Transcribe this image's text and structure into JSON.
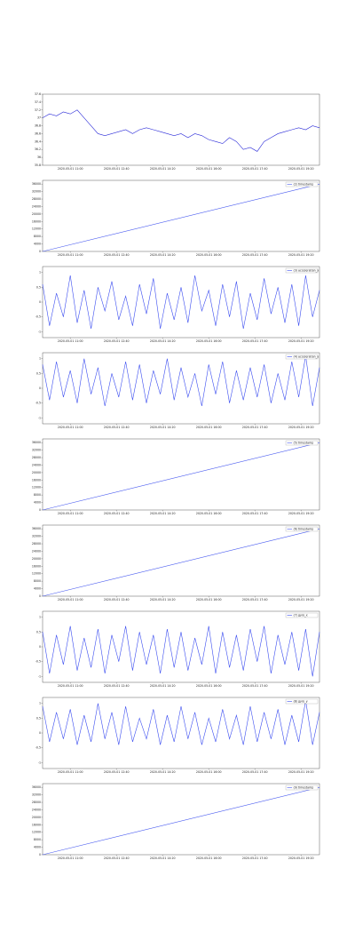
{
  "chart_data": [
    {
      "type": "line",
      "x": [
        0,
        15,
        30,
        45,
        60,
        75,
        90,
        105,
        120,
        135,
        150,
        165,
        180,
        195,
        210,
        225,
        240,
        255,
        270,
        285,
        300,
        315,
        330,
        345,
        360,
        375,
        390,
        405,
        420,
        435,
        450,
        465,
        480,
        495,
        510,
        525,
        540,
        555,
        570,
        585,
        600
      ],
      "series": [
        {
          "color": "#2a2ad8",
          "values": [
            37.0,
            37.1,
            37.05,
            37.15,
            37.1,
            37.2,
            37.0,
            36.8,
            36.6,
            36.55,
            36.6,
            36.65,
            36.7,
            36.6,
            36.7,
            36.75,
            36.7,
            36.65,
            36.6,
            36.55,
            36.6,
            36.5,
            36.6,
            36.55,
            36.45,
            36.4,
            36.35,
            36.5,
            36.4,
            36.2,
            36.25,
            36.15,
            36.4,
            36.5,
            36.6,
            36.65,
            36.7,
            36.75,
            36.7,
            36.8,
            36.75
          ]
        }
      ],
      "xlim": [
        0,
        600
      ],
      "ylim": [
        35.8,
        37.6
      ],
      "yticks": [
        35.8,
        36.0,
        36.2,
        36.4,
        36.6,
        36.8,
        37.0,
        37.2,
        37.4,
        37.6
      ],
      "xticks": [
        {
          "value": 60,
          "label": "2020-05-01 11:00"
        },
        {
          "value": 160,
          "label": "2020-05-01 12:40"
        },
        {
          "value": 260,
          "label": "2020-05-01 14:20"
        },
        {
          "value": 360,
          "label": "2020-05-01 16:00"
        },
        {
          "value": 460,
          "label": "2020-05-01 17:40"
        },
        {
          "value": 560,
          "label": "2020-05-01 19:20"
        }
      ]
    },
    {
      "type": "line",
      "x": [
        0,
        600
      ],
      "series": [
        {
          "name": "(2) timestamp",
          "color": "#4a5cf0",
          "values": [
            0,
            36000
          ]
        }
      ],
      "xlim": [
        0,
        600
      ],
      "ylim": [
        0,
        38000
      ],
      "yticks": [
        0,
        4000,
        8000,
        12000,
        16000,
        20000,
        24000,
        28000,
        32000,
        36000
      ],
      "legend": "upper right",
      "xticks": [
        {
          "value": 60,
          "label": "2020-05-01 11:00"
        },
        {
          "value": 160,
          "label": "2020-05-01 12:40"
        },
        {
          "value": 260,
          "label": "2020-05-01 14:20"
        },
        {
          "value": 360,
          "label": "2020-05-01 16:00"
        },
        {
          "value": 460,
          "label": "2020-05-01 17:40"
        },
        {
          "value": 560,
          "label": "2020-05-01 19:20"
        }
      ]
    },
    {
      "type": "line",
      "x": [
        0,
        15,
        30,
        45,
        60,
        75,
        90,
        105,
        120,
        135,
        150,
        165,
        180,
        195,
        210,
        225,
        240,
        255,
        270,
        285,
        300,
        315,
        330,
        345,
        360,
        375,
        390,
        405,
        420,
        435,
        450,
        465,
        480,
        495,
        510,
        525,
        540,
        555,
        570,
        585,
        600
      ],
      "series": [
        {
          "name": "(3) acceleration_x",
          "color": "#3a4cf0",
          "values": [
            0.6,
            -0.8,
            0.3,
            -0.5,
            0.9,
            -0.7,
            0.4,
            -0.9,
            0.5,
            -0.3,
            0.7,
            -0.6,
            0.2,
            -0.8,
            0.6,
            -0.4,
            0.8,
            -0.9,
            0.3,
            -0.6,
            0.5,
            -0.7,
            0.9,
            -0.3,
            0.4,
            -0.8,
            0.6,
            -0.5,
            0.7,
            -0.9,
            0.3,
            -0.6,
            0.8,
            -0.4,
            0.5,
            -0.7,
            0.6,
            -0.8,
            0.9,
            -0.5,
            0.4
          ]
        }
      ],
      "xlim": [
        0,
        600
      ],
      "ylim": [
        -1.2,
        1.2
      ],
      "yticks": [
        -1,
        -0.5,
        0,
        0.5,
        1
      ],
      "legend": "upper right",
      "xticks": [
        {
          "value": 60,
          "label": "2020-05-01 11:00"
        },
        {
          "value": 160,
          "label": "2020-05-01 12:40"
        },
        {
          "value": 260,
          "label": "2020-05-01 14:20"
        },
        {
          "value": 360,
          "label": "2020-05-01 16:00"
        },
        {
          "value": 460,
          "label": "2020-05-01 17:40"
        },
        {
          "value": 560,
          "label": "2020-05-01 19:20"
        }
      ]
    },
    {
      "type": "line",
      "x": [
        0,
        15,
        30,
        45,
        60,
        75,
        90,
        105,
        120,
        135,
        150,
        165,
        180,
        195,
        210,
        225,
        240,
        255,
        270,
        285,
        300,
        315,
        330,
        345,
        360,
        375,
        390,
        405,
        420,
        435,
        450,
        465,
        480,
        495,
        510,
        525,
        540,
        555,
        570,
        585,
        600
      ],
      "series": [
        {
          "name": "(4) acceleration_y",
          "color": "#3a4cf0",
          "values": [
            0.8,
            -0.4,
            0.9,
            -0.3,
            0.6,
            -0.5,
            1.0,
            -0.2,
            0.7,
            -0.6,
            0.5,
            -0.3,
            0.9,
            -0.4,
            0.8,
            -0.5,
            0.6,
            -0.2,
            1.0,
            -0.4,
            0.7,
            -0.3,
            0.5,
            -0.6,
            0.8,
            -0.2,
            0.9,
            -0.5,
            0.6,
            -0.4,
            0.7,
            -0.3,
            0.8,
            -0.5,
            0.5,
            -0.4,
            0.9,
            -0.3,
            1.1,
            -0.6,
            0.7
          ]
        }
      ],
      "xlim": [
        0,
        600
      ],
      "ylim": [
        -1.2,
        1.2
      ],
      "yticks": [
        -1,
        -0.5,
        0,
        0.5,
        1
      ],
      "legend": "upper right",
      "xticks": [
        {
          "value": 60,
          "label": "2020-05-01 11:00"
        },
        {
          "value": 160,
          "label": "2020-05-01 12:40"
        },
        {
          "value": 260,
          "label": "2020-05-01 14:20"
        },
        {
          "value": 360,
          "label": "2020-05-01 16:00"
        },
        {
          "value": 460,
          "label": "2020-05-01 17:40"
        },
        {
          "value": 560,
          "label": "2020-05-01 19:20"
        }
      ]
    },
    {
      "type": "line",
      "x": [
        0,
        600
      ],
      "series": [
        {
          "name": "(5) timestamp",
          "color": "#4a5cf0",
          "values": [
            0,
            36000
          ]
        }
      ],
      "xlim": [
        0,
        600
      ],
      "ylim": [
        0,
        38000
      ],
      "yticks": [
        0,
        4000,
        8000,
        12000,
        16000,
        20000,
        24000,
        28000,
        32000,
        36000
      ],
      "legend": "upper right",
      "xticks": [
        {
          "value": 60,
          "label": "2020-05-01 11:00"
        },
        {
          "value": 160,
          "label": "2020-05-01 12:40"
        },
        {
          "value": 260,
          "label": "2020-05-01 14:20"
        },
        {
          "value": 360,
          "label": "2020-05-01 16:00"
        },
        {
          "value": 460,
          "label": "2020-05-01 17:40"
        },
        {
          "value": 560,
          "label": "2020-05-01 19:20"
        }
      ]
    },
    {
      "type": "line",
      "x": [
        0,
        600
      ],
      "series": [
        {
          "name": "(6) timestamp",
          "color": "#4a5cf0",
          "values": [
            0,
            36000
          ]
        }
      ],
      "xlim": [
        0,
        600
      ],
      "ylim": [
        0,
        38000
      ],
      "yticks": [
        0,
        4000,
        8000,
        12000,
        16000,
        20000,
        24000,
        28000,
        32000,
        36000
      ],
      "legend": "upper right",
      "xticks": [
        {
          "value": 60,
          "label": "2020-05-01 11:00"
        },
        {
          "value": 160,
          "label": "2020-05-01 12:40"
        },
        {
          "value": 260,
          "label": "2020-05-01 14:20"
        },
        {
          "value": 360,
          "label": "2020-05-01 16:00"
        },
        {
          "value": 460,
          "label": "2020-05-01 17:40"
        },
        {
          "value": 560,
          "label": "2020-05-01 19:20"
        }
      ]
    },
    {
      "type": "line",
      "x": [
        0,
        15,
        30,
        45,
        60,
        75,
        90,
        105,
        120,
        135,
        150,
        165,
        180,
        195,
        210,
        225,
        240,
        255,
        270,
        285,
        300,
        315,
        330,
        345,
        360,
        375,
        390,
        405,
        420,
        435,
        450,
        465,
        480,
        495,
        510,
        525,
        540,
        555,
        570,
        585,
        600
      ],
      "series": [
        {
          "name": "(7) gyro_x",
          "color": "#3a4cf0",
          "values": [
            0.5,
            -0.9,
            0.4,
            -0.6,
            0.7,
            -0.8,
            0.3,
            -0.7,
            0.6,
            -0.9,
            0.4,
            -0.5,
            0.7,
            -0.8,
            0.5,
            -0.6,
            0.4,
            -0.9,
            0.6,
            -0.7,
            0.5,
            -0.8,
            0.3,
            -0.6,
            0.7,
            -0.9,
            0.5,
            -0.7,
            0.4,
            -0.8,
            0.6,
            -0.5,
            0.7,
            -0.9,
            0.4,
            -0.6,
            0.5,
            -0.8,
            0.6,
            -1.0,
            0.5
          ]
        }
      ],
      "xlim": [
        0,
        600
      ],
      "ylim": [
        -1.2,
        1.2
      ],
      "yticks": [
        -1,
        -0.5,
        0,
        0.5,
        1
      ],
      "legend": "upper right",
      "xticks": [
        {
          "value": 60,
          "label": "2020-05-01 11:00"
        },
        {
          "value": 160,
          "label": "2020-05-01 12:40"
        },
        {
          "value": 260,
          "label": "2020-05-01 14:20"
        },
        {
          "value": 360,
          "label": "2020-05-01 16:00"
        },
        {
          "value": 460,
          "label": "2020-05-01 17:40"
        },
        {
          "value": 560,
          "label": "2020-05-01 19:20"
        }
      ]
    },
    {
      "type": "line",
      "x": [
        0,
        15,
        30,
        45,
        60,
        75,
        90,
        105,
        120,
        135,
        150,
        165,
        180,
        195,
        210,
        225,
        240,
        255,
        270,
        285,
        300,
        315,
        330,
        345,
        360,
        375,
        390,
        405,
        420,
        435,
        450,
        465,
        480,
        495,
        510,
        525,
        540,
        555,
        570,
        585,
        600
      ],
      "series": [
        {
          "name": "(8) gyro_y",
          "color": "#3a4cf0",
          "values": [
            0.9,
            -0.3,
            0.7,
            -0.2,
            0.8,
            -0.4,
            0.6,
            -0.3,
            1.0,
            -0.2,
            0.7,
            -0.4,
            0.9,
            -0.3,
            0.5,
            -0.2,
            0.8,
            -0.4,
            0.6,
            -0.3,
            0.9,
            -0.2,
            0.7,
            -0.4,
            0.5,
            -0.3,
            0.8,
            -0.2,
            0.6,
            -0.4,
            0.9,
            -0.3,
            0.7,
            -0.2,
            0.8,
            -0.4,
            0.6,
            -0.3,
            1.1,
            -0.4,
            0.7
          ]
        }
      ],
      "xlim": [
        0,
        600
      ],
      "ylim": [
        -1.2,
        1.2
      ],
      "yticks": [
        -1,
        -0.5,
        0,
        0.5,
        1
      ],
      "legend": "upper right",
      "xticks": [
        {
          "value": 60,
          "label": "2020-05-01 11:00"
        },
        {
          "value": 160,
          "label": "2020-05-01 12:40"
        },
        {
          "value": 260,
          "label": "2020-05-01 14:20"
        },
        {
          "value": 360,
          "label": "2020-05-01 16:00"
        },
        {
          "value": 460,
          "label": "2020-05-01 17:40"
        },
        {
          "value": 560,
          "label": "2020-05-01 19:20"
        }
      ]
    },
    {
      "type": "line",
      "x": [
        0,
        600
      ],
      "series": [
        {
          "name": "(9) timestamp",
          "color": "#4a5cf0",
          "values": [
            0,
            36000
          ]
        }
      ],
      "xlim": [
        0,
        600
      ],
      "ylim": [
        0,
        38000
      ],
      "yticks": [
        0,
        4000,
        8000,
        12000,
        16000,
        20000,
        24000,
        28000,
        32000,
        36000
      ],
      "legend": "upper right",
      "xticks": [
        {
          "value": 60,
          "label": "2020-05-01 11:00"
        },
        {
          "value": 160,
          "label": "2020-05-01 12:40"
        },
        {
          "value": 260,
          "label": "2020-05-01 14:20"
        },
        {
          "value": 360,
          "label": "2020-05-01 16:00"
        },
        {
          "value": 460,
          "label": "2020-05-01 17:40"
        },
        {
          "value": 560,
          "label": "2020-05-01 19:20"
        }
      ]
    }
  ]
}
